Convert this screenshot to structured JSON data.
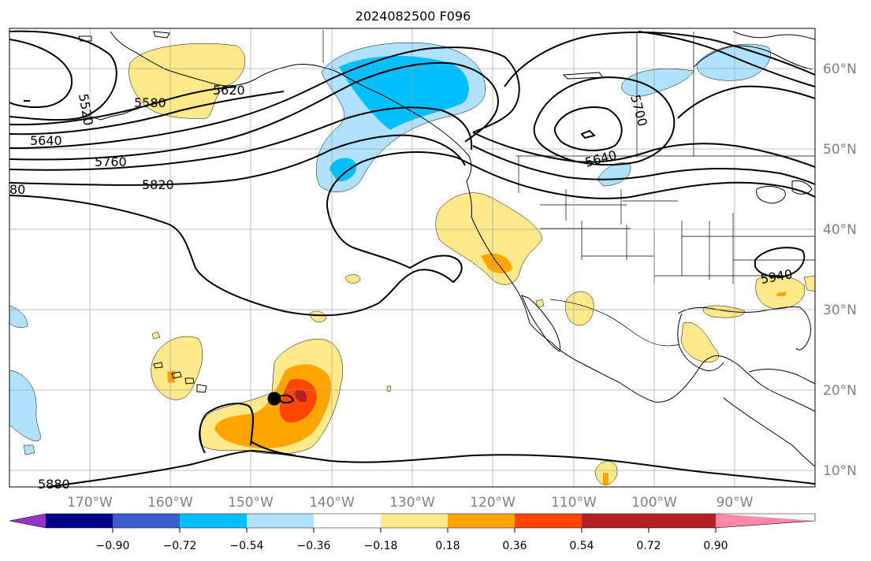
{
  "title": "2024082500 F096",
  "lon_labels": [
    "170°W",
    "160°W",
    "150°W",
    "140°W",
    "130°W",
    "120°W",
    "110°W",
    "100°W",
    "90°W"
  ],
  "lat_labels": [
    "60°N",
    "50°N",
    "40°N",
    "30°N",
    "20°N",
    "10°N"
  ],
  "contour_labels": [
    "5520",
    "5580",
    "5620",
    "5640",
    "5760",
    "5820",
    "80",
    "5640",
    "5700",
    "5880",
    "5940"
  ],
  "colorbar": {
    "ticks": [
      "−0.90",
      "−0.72",
      "−0.54",
      "−0.36",
      "−0.18",
      "0.18",
      "0.36",
      "0.54",
      "0.72",
      "0.90"
    ],
    "colors": [
      "#9932cc",
      "#00008b",
      "#3a5fcd",
      "#00bfff",
      "#b0e2ff",
      "#ffffff",
      "#ffe98a",
      "#ffa500",
      "#ff4500",
      "#b22222",
      "#ff88aa"
    ]
  }
}
